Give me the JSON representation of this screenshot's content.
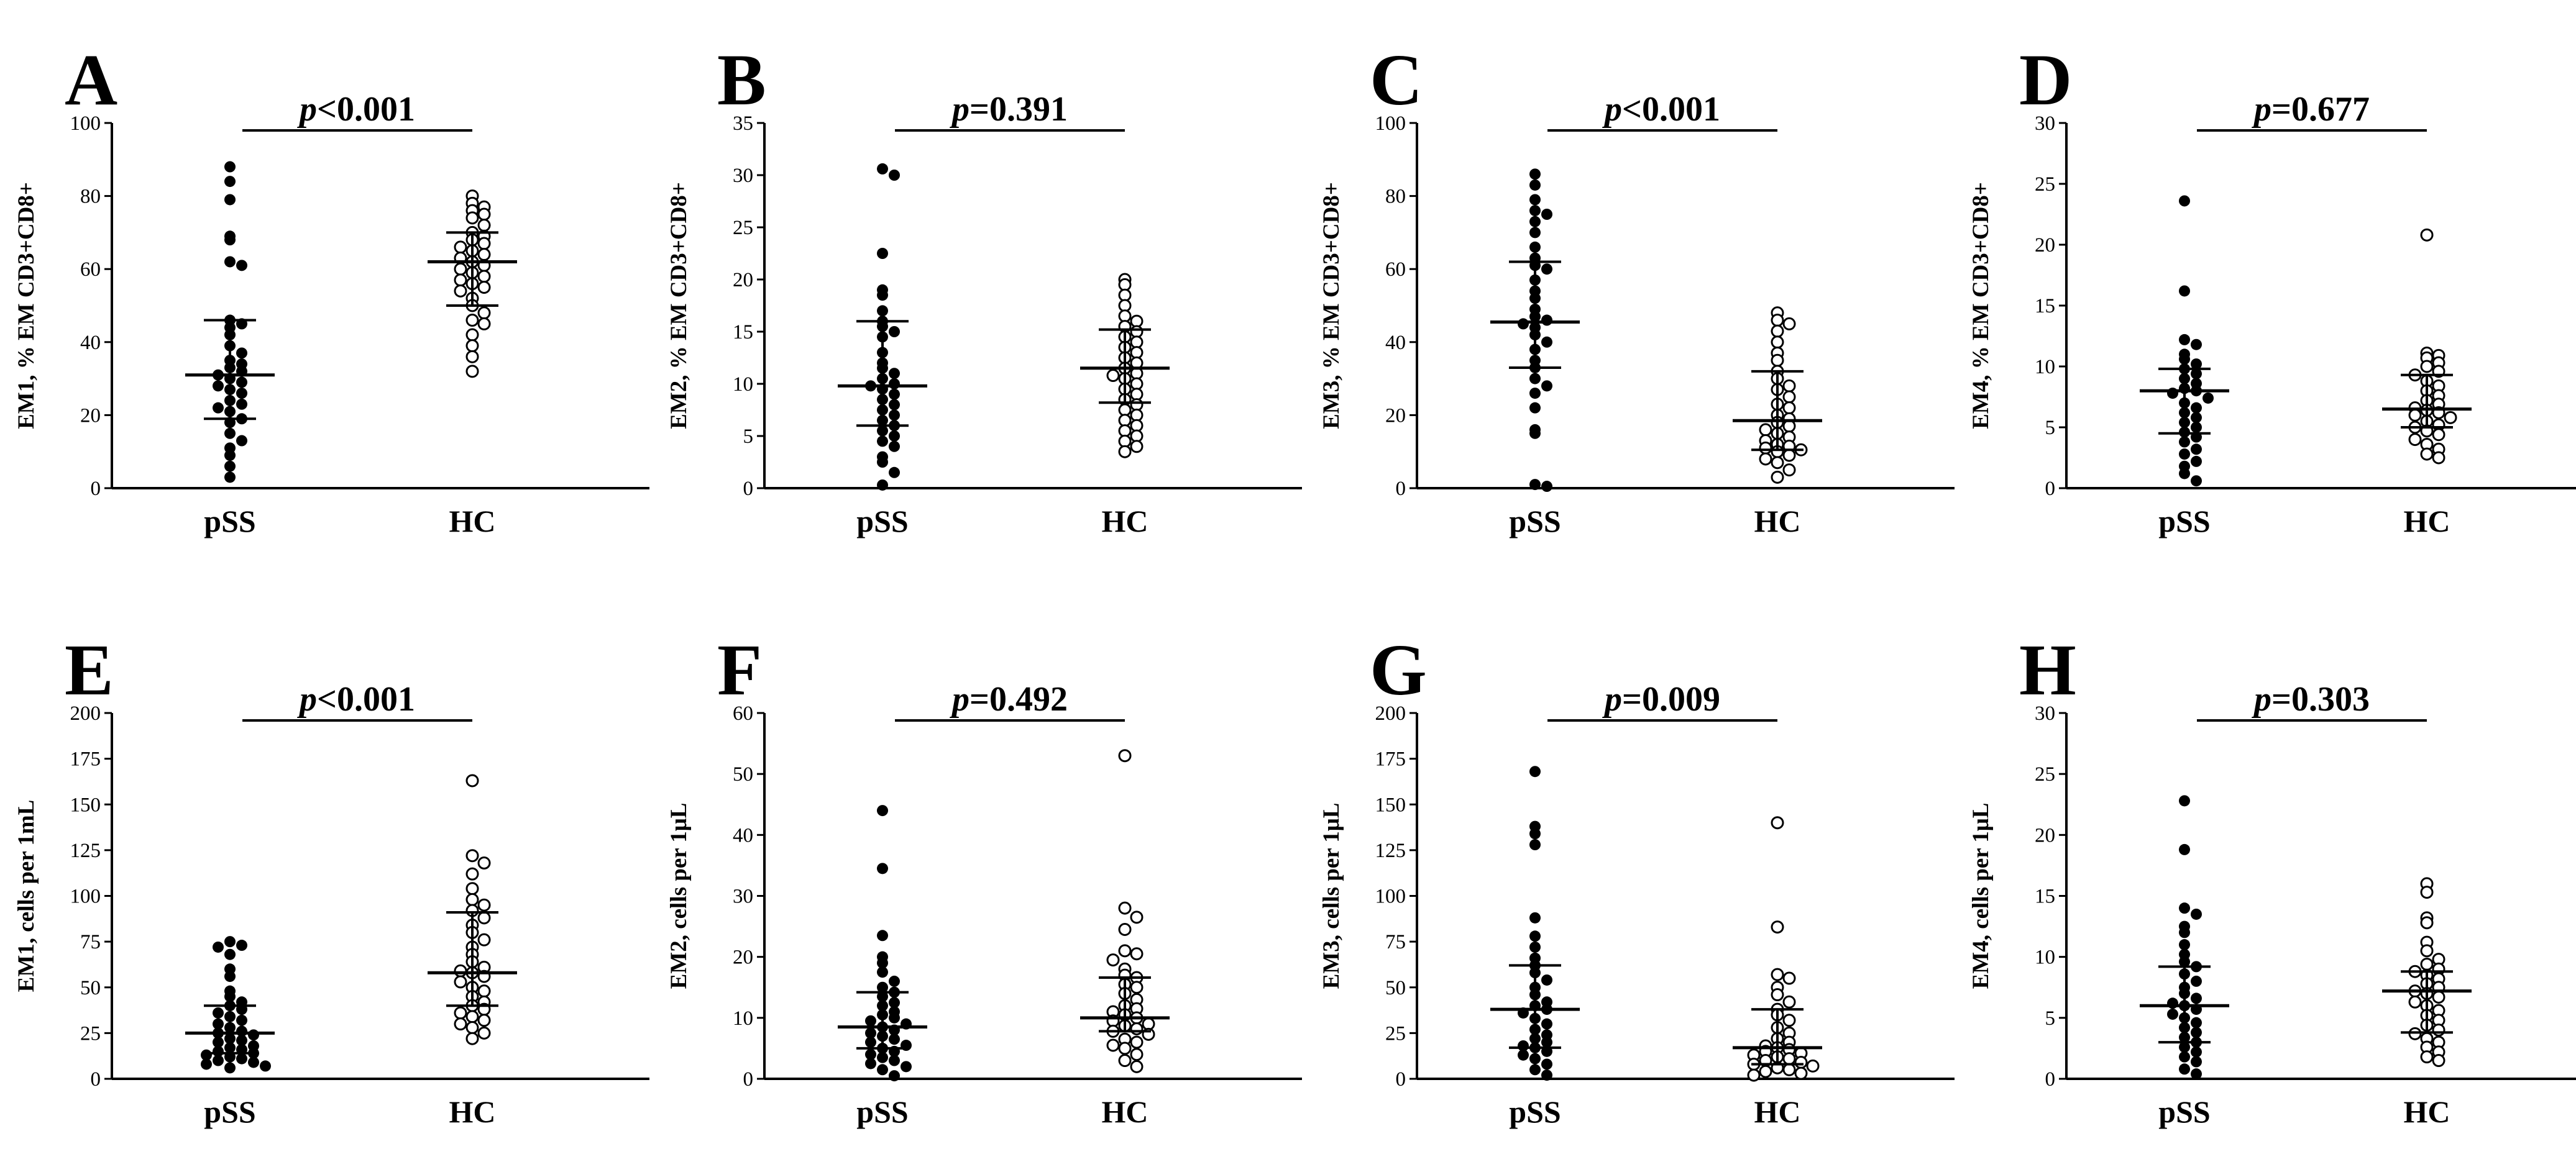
{
  "chart_data": [
    {
      "type": "scatter",
      "panel": "A",
      "ylabel": "EM1, % EM CD3+CD8+",
      "ylim": [
        0,
        100
      ],
      "yticks": [
        0,
        20,
        40,
        60,
        80,
        100
      ],
      "categories": [
        "pSS",
        "HC"
      ],
      "p_prefix": "p",
      "p_text": "<0.001",
      "series": [
        {
          "category": "pSS",
          "marker": "filled",
          "median": 31,
          "q1": 19,
          "q3": 46,
          "values": [
            88,
            84,
            79,
            69,
            68,
            62,
            61,
            46,
            45,
            44,
            42,
            39,
            37,
            35,
            34,
            33,
            32,
            31,
            30,
            29,
            28,
            27,
            26,
            24,
            23,
            22,
            21,
            19,
            18,
            15,
            13,
            11,
            9,
            6,
            3
          ]
        },
        {
          "category": "HC",
          "marker": "open",
          "median": 62,
          "q1": 50,
          "q3": 70,
          "values": [
            80,
            78,
            77,
            76,
            75,
            74,
            72,
            70,
            69,
            68,
            67,
            66,
            65,
            64,
            63,
            62,
            61,
            60,
            59,
            58,
            57,
            56,
            55,
            54,
            52,
            50,
            48,
            46,
            45,
            42,
            39,
            36,
            32
          ]
        }
      ]
    },
    {
      "type": "scatter",
      "panel": "B",
      "ylabel": "EM2, % EM CD3+CD8+",
      "ylim": [
        0,
        35
      ],
      "yticks": [
        0,
        5,
        10,
        15,
        20,
        25,
        30,
        35
      ],
      "categories": [
        "pSS",
        "HC"
      ],
      "p_prefix": "p",
      "p_text": "=0.391",
      "series": [
        {
          "category": "pSS",
          "marker": "filled",
          "median": 9.8,
          "q1": 6,
          "q3": 16,
          "values": [
            30.6,
            30,
            22.5,
            19,
            18.5,
            17,
            16,
            15.5,
            15,
            14.5,
            13,
            12,
            11.5,
            11,
            10.5,
            10,
            9.8,
            9.5,
            9,
            8.5,
            8,
            7.5,
            7,
            6.5,
            6,
            5.5,
            5,
            4.5,
            4,
            3,
            2.5,
            1.5,
            0.3
          ]
        },
        {
          "category": "HC",
          "marker": "open",
          "median": 11.5,
          "q1": 8.2,
          "q3": 15.2,
          "values": [
            20,
            19.5,
            18.5,
            17.5,
            16.5,
            16,
            15.5,
            15,
            14.5,
            14,
            13.5,
            13,
            12.5,
            12,
            11.5,
            11,
            10.8,
            10.5,
            10,
            9.5,
            9,
            8.5,
            8,
            7.5,
            7,
            6.5,
            6,
            5.5,
            5,
            4.5,
            4,
            3.5
          ]
        }
      ]
    },
    {
      "type": "scatter",
      "panel": "C",
      "ylabel": "EM3, % EM CD3+CD8+",
      "ylim": [
        0,
        100
      ],
      "yticks": [
        0,
        20,
        40,
        60,
        80,
        100
      ],
      "categories": [
        "pSS",
        "HC"
      ],
      "p_prefix": "p",
      "p_text": "<0.001",
      "series": [
        {
          "category": "pSS",
          "marker": "filled",
          "median": 45.5,
          "q1": 33,
          "q3": 62,
          "values": [
            86,
            83,
            79,
            76,
            75,
            73,
            70,
            66,
            63,
            61,
            60,
            57,
            54,
            52,
            49,
            47,
            46,
            45,
            44,
            42,
            40,
            38,
            35,
            33,
            30,
            28,
            26,
            22,
            16,
            15,
            1,
            0.5
          ]
        },
        {
          "category": "HC",
          "marker": "open",
          "median": 18.5,
          "q1": 10.5,
          "q3": 32,
          "values": [
            48,
            46,
            45,
            43,
            40,
            37,
            35,
            32,
            30,
            28,
            27,
            25,
            23,
            22,
            20,
            19,
            18,
            17,
            16,
            15,
            14,
            13,
            12,
            11.5,
            11,
            10.5,
            10,
            9,
            8,
            7,
            5,
            3
          ]
        }
      ]
    },
    {
      "type": "scatter",
      "panel": "D",
      "ylabel": "EM4, % EM CD3+CD8+",
      "ylim": [
        0,
        30
      ],
      "yticks": [
        0,
        5,
        10,
        15,
        20,
        25,
        30
      ],
      "categories": [
        "pSS",
        "HC"
      ],
      "p_prefix": "p",
      "p_text": "=0.677",
      "series": [
        {
          "category": "pSS",
          "marker": "filled",
          "median": 8,
          "q1": 4.5,
          "q3": 9.8,
          "values": [
            23.6,
            16.2,
            12.2,
            11.8,
            11,
            10.6,
            10.2,
            9.8,
            9.4,
            9,
            8.6,
            8.2,
            8,
            7.8,
            7.4,
            7,
            6.6,
            6.2,
            5.8,
            5.4,
            5,
            4.6,
            4.2,
            3.8,
            3.2,
            2.8,
            2.2,
            1.8,
            1.2,
            0.6
          ]
        },
        {
          "category": "HC",
          "marker": "open",
          "median": 6.5,
          "q1": 5,
          "q3": 9.3,
          "values": [
            20.8,
            11.1,
            10.9,
            10.7,
            10.3,
            10,
            9.6,
            9.3,
            8.8,
            8.4,
            8,
            7.6,
            7.2,
            6.9,
            6.6,
            6.4,
            6.2,
            6,
            5.8,
            5.5,
            5.2,
            5,
            4.7,
            4.4,
            4,
            3.6,
            3.2,
            2.8,
            2.5
          ]
        }
      ]
    },
    {
      "type": "scatter",
      "panel": "E",
      "ylabel": "EM1, cells per 1mL",
      "ylim": [
        0,
        200
      ],
      "yticks": [
        0,
        25,
        50,
        75,
        100,
        125,
        150,
        175,
        200
      ],
      "categories": [
        "pSS",
        "HC"
      ],
      "p_prefix": "p",
      "p_text": "<0.001",
      "series": [
        {
          "category": "pSS",
          "marker": "filled",
          "median": 25,
          "q1": 14,
          "q3": 40,
          "values": [
            75,
            73,
            72,
            68,
            60,
            56,
            48,
            45,
            42,
            40,
            38,
            36,
            34,
            32,
            30,
            28,
            26,
            25,
            24,
            22,
            21,
            20,
            18,
            17,
            16,
            15,
            14,
            13,
            12,
            11,
            10,
            9,
            8,
            7,
            6
          ]
        },
        {
          "category": "HC",
          "marker": "open",
          "median": 58,
          "q1": 40,
          "q3": 91,
          "values": [
            163,
            122,
            118,
            112,
            104,
            98,
            95,
            92,
            88,
            84,
            80,
            76,
            72,
            68,
            64,
            61,
            59,
            58,
            56,
            53,
            50,
            48,
            45,
            42,
            40,
            38,
            36,
            34,
            32,
            30,
            28,
            25,
            22
          ]
        }
      ]
    },
    {
      "type": "scatter",
      "panel": "F",
      "ylabel": "EM2, cells per 1μL",
      "ylim": [
        0,
        60
      ],
      "yticks": [
        0,
        10,
        20,
        30,
        40,
        50,
        60
      ],
      "categories": [
        "pSS",
        "HC"
      ],
      "p_prefix": "p",
      "p_text": "=0.492",
      "series": [
        {
          "category": "pSS",
          "marker": "filled",
          "median": 8.5,
          "q1": 5,
          "q3": 14.2,
          "values": [
            44,
            34.5,
            23.5,
            20,
            19,
            17.5,
            16,
            15,
            14.2,
            13.5,
            12.5,
            12,
            11,
            10.5,
            10,
            9.5,
            9,
            8.5,
            8,
            7.5,
            7,
            6.5,
            6,
            5.5,
            5,
            4.5,
            4,
            3.5,
            3,
            2.5,
            2,
            1.5,
            0.5
          ]
        },
        {
          "category": "HC",
          "marker": "open",
          "median": 10,
          "q1": 7.8,
          "q3": 16.6,
          "values": [
            53,
            28,
            26.5,
            24.5,
            21,
            20.5,
            19.5,
            18,
            17,
            16.6,
            15.5,
            15,
            14,
            13,
            12,
            11.5,
            11,
            10.5,
            10,
            9.5,
            9,
            8.7,
            8.2,
            7.8,
            7.3,
            6.5,
            6,
            5.5,
            5,
            4,
            3,
            2
          ]
        }
      ]
    },
    {
      "type": "scatter",
      "panel": "G",
      "ylabel": "EM3, cells per 1μL",
      "ylim": [
        0,
        200
      ],
      "yticks": [
        0,
        25,
        50,
        75,
        100,
        125,
        150,
        175,
        200
      ],
      "categories": [
        "pSS",
        "HC"
      ],
      "p_prefix": "p",
      "p_text": "=0.009",
      "series": [
        {
          "category": "pSS",
          "marker": "filled",
          "median": 38,
          "q1": 17,
          "q3": 62,
          "values": [
            168,
            138,
            134,
            128,
            88,
            78,
            72,
            66,
            62,
            58,
            54,
            50,
            46,
            42,
            40,
            38,
            36,
            33,
            30,
            27,
            24,
            22,
            20,
            18,
            17,
            15,
            13,
            11,
            8,
            5,
            2
          ]
        },
        {
          "category": "HC",
          "marker": "open",
          "median": 17,
          "q1": 8,
          "q3": 38,
          "values": [
            140,
            83,
            57,
            55,
            50,
            46,
            42,
            38,
            35,
            32,
            28,
            25,
            22,
            20,
            18,
            17,
            16,
            15,
            14,
            13,
            12,
            11,
            10,
            9,
            8,
            7,
            6,
            5,
            4,
            3,
            2
          ]
        }
      ]
    },
    {
      "type": "scatter",
      "panel": "H",
      "ylabel": "EM4, cells per 1μL",
      "ylim": [
        0,
        30
      ],
      "yticks": [
        0,
        5,
        10,
        15,
        20,
        25,
        30
      ],
      "categories": [
        "pSS",
        "HC"
      ],
      "p_prefix": "p",
      "p_text": "=0.303",
      "series": [
        {
          "category": "pSS",
          "marker": "filled",
          "median": 6,
          "q1": 3,
          "q3": 9.2,
          "values": [
            22.8,
            18.8,
            14,
            13.5,
            12.5,
            12,
            11,
            10.2,
            9.6,
            9.2,
            8.6,
            8,
            7.5,
            7,
            6.6,
            6.2,
            6,
            5.7,
            5.3,
            5,
            4.6,
            4.2,
            3.8,
            3.4,
            3,
            2.6,
            2.2,
            1.8,
            1.4,
            0.8,
            0.4
          ]
        },
        {
          "category": "HC",
          "marker": "open",
          "median": 7.2,
          "q1": 3.8,
          "q3": 8.8,
          "values": [
            16,
            15.3,
            13.2,
            12.8,
            11.2,
            10.5,
            9.8,
            9.4,
            9,
            8.8,
            8.5,
            8.2,
            7.8,
            7.5,
            7.2,
            7,
            6.7,
            6.3,
            6,
            5.6,
            5.2,
            4.8,
            4.4,
            4,
            3.7,
            3.3,
            3,
            2.6,
            2.2,
            1.8,
            1.5
          ]
        }
      ]
    }
  ]
}
